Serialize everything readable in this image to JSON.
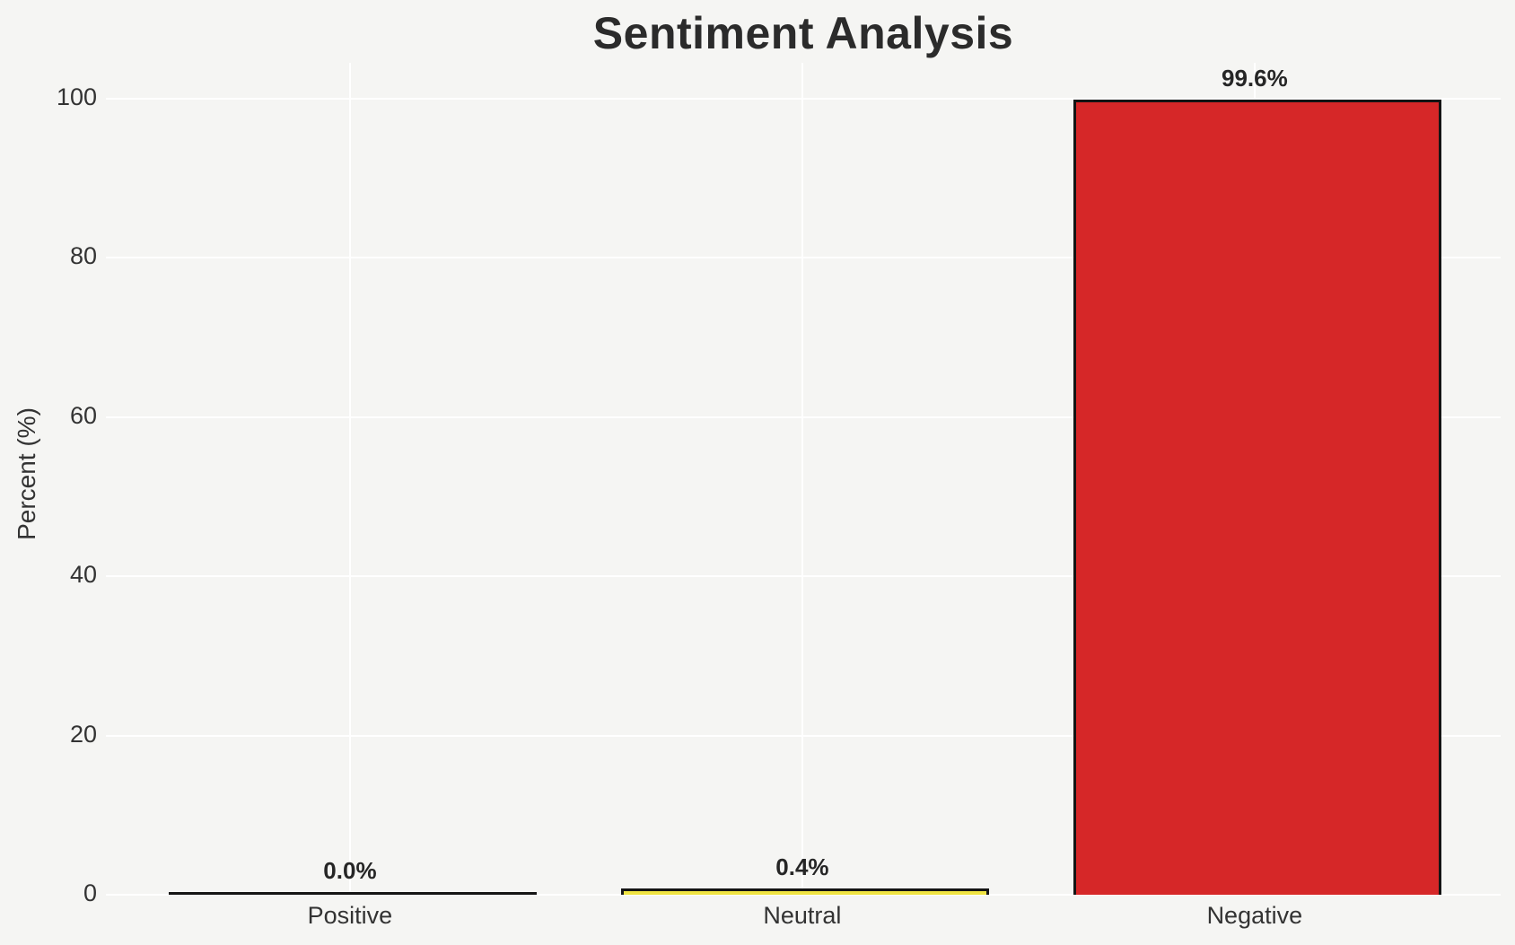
{
  "figure": {
    "title": "Sentiment Analysis"
  },
  "chart_data": {
    "type": "bar",
    "title": "Sentiment Analysis",
    "categories": [
      "Positive",
      "Neutral",
      "Negative"
    ],
    "values": [
      0.0,
      0.4,
      99.6
    ],
    "value_labels": [
      "0.0%",
      "0.4%",
      "99.6%"
    ],
    "xlabel": "",
    "ylabel": "Percent (%)",
    "ylim": [
      0,
      100
    ],
    "yticks": [
      0,
      20,
      40,
      60,
      80,
      100
    ],
    "grid": true,
    "legend": false,
    "bar_colors": [
      "#2ca02c",
      "#f0e442",
      "#d62728"
    ],
    "bar_edge_color": "#141414",
    "background_color": "#f5f5f3",
    "gridline_color": "#ffffff",
    "text_color": "#333333",
    "value_label_color": "#262626"
  }
}
